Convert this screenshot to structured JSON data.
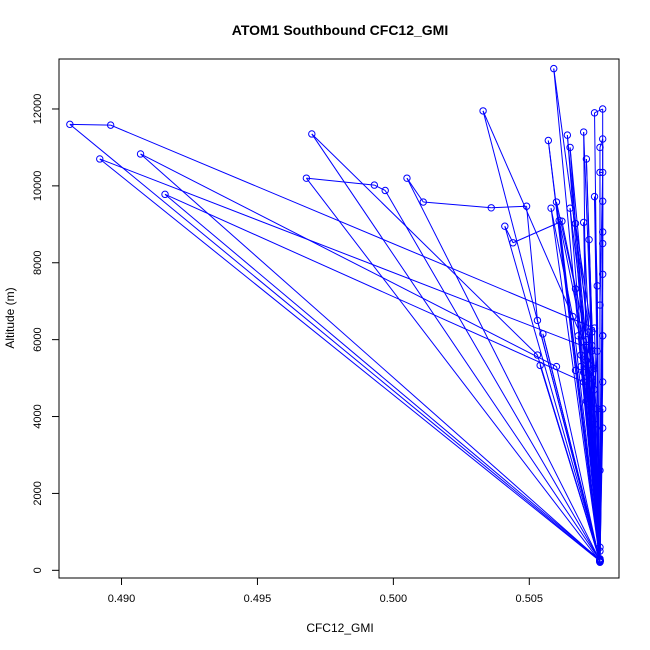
{
  "chart_data": {
    "type": "line",
    "title": "ATOM1 Southbound CFC12_GMI",
    "xlabel": "CFC12_GMI",
    "ylabel": "Altitude (m)",
    "xlim": [
      0.4877,
      0.5083
    ],
    "ylim": [
      -200,
      13300
    ],
    "x_ticks": [
      {
        "value": 0.49,
        "label": "0.490"
      },
      {
        "value": 0.495,
        "label": "0.495"
      },
      {
        "value": 0.5,
        "label": "0.500"
      },
      {
        "value": 0.505,
        "label": "0.505"
      }
    ],
    "y_ticks": [
      {
        "value": 0,
        "label": "0"
      },
      {
        "value": 2000,
        "label": "2000"
      },
      {
        "value": 4000,
        "label": "4000"
      },
      {
        "value": 6000,
        "label": "6000"
      },
      {
        "value": 8000,
        "label": "8000"
      },
      {
        "value": 10000,
        "label": "10000"
      },
      {
        "value": 12000,
        "label": "12000"
      }
    ],
    "grid": false,
    "legend": "none",
    "series_color": "#0000ff",
    "marker": "open-circle",
    "points": [
      [
        0.5076,
        250
      ],
      [
        0.4881,
        11600
      ],
      [
        0.4896,
        11580
      ],
      [
        0.5074,
        6300
      ],
      [
        0.5076,
        220
      ],
      [
        0.5076,
        240
      ],
      [
        0.4892,
        10700
      ],
      [
        0.5071,
        5800
      ],
      [
        0.5076,
        230
      ],
      [
        0.5076,
        260
      ],
      [
        0.4907,
        10830
      ],
      [
        0.506,
        5300
      ],
      [
        0.5076,
        210
      ],
      [
        0.5076,
        270
      ],
      [
        0.4916,
        9780
      ],
      [
        0.507,
        4900
      ],
      [
        0.5076,
        250
      ],
      [
        0.5076,
        260
      ],
      [
        0.497,
        11350
      ],
      [
        0.5053,
        5600
      ],
      [
        0.5076,
        240
      ],
      [
        0.5076,
        230
      ],
      [
        0.4968,
        10200
      ],
      [
        0.4993,
        10020
      ],
      [
        0.4997,
        9880
      ],
      [
        0.5076,
        260
      ],
      [
        0.5076,
        250
      ],
      [
        0.5005,
        10200
      ],
      [
        0.5011,
        9580
      ],
      [
        0.5036,
        9430
      ],
      [
        0.5049,
        9470
      ],
      [
        0.5053,
        6500
      ],
      [
        0.5076,
        240
      ],
      [
        0.5076,
        220
      ],
      [
        0.5033,
        11950
      ],
      [
        0.507,
        5950
      ],
      [
        0.5076,
        250
      ],
      [
        0.5076,
        260
      ],
      [
        0.5059,
        13050
      ],
      [
        0.5073,
        5700
      ],
      [
        0.5076,
        230
      ],
      [
        0.5076,
        240
      ],
      [
        0.5057,
        11180
      ],
      [
        0.5067,
        5200
      ],
      [
        0.5076,
        250
      ],
      [
        0.5076,
        230
      ],
      [
        0.5064,
        11320
      ],
      [
        0.5072,
        5100
      ],
      [
        0.5076,
        260
      ],
      [
        0.5076,
        250
      ],
      [
        0.507,
        11400
      ],
      [
        0.5071,
        4400
      ],
      [
        0.5076,
        220
      ],
      [
        0.5076,
        270
      ],
      [
        0.5041,
        8950
      ],
      [
        0.5044,
        8520
      ],
      [
        0.5062,
        9080
      ],
      [
        0.5071,
        6000
      ],
      [
        0.5076,
        240
      ],
      [
        0.5076,
        250
      ],
      [
        0.5055,
        6150
      ],
      [
        0.5076,
        260
      ],
      [
        0.5076,
        230
      ],
      [
        0.5054,
        5330
      ],
      [
        0.5076,
        250
      ],
      [
        0.5076,
        240
      ],
      [
        0.5058,
        9420
      ],
      [
        0.5066,
        6600
      ],
      [
        0.5076,
        230
      ],
      [
        0.5076,
        260
      ],
      [
        0.506,
        9580
      ],
      [
        0.5067,
        7320
      ],
      [
        0.5076,
        250
      ],
      [
        0.5076,
        240
      ],
      [
        0.5065,
        9420
      ],
      [
        0.5072,
        5350
      ],
      [
        0.5076,
        260
      ],
      [
        0.5076,
        250
      ],
      [
        0.5061,
        9100
      ],
      [
        0.5075,
        4200
      ],
      [
        0.5076,
        230
      ],
      [
        0.5076,
        240
      ],
      [
        0.5067,
        9020
      ],
      [
        0.5073,
        6200
      ],
      [
        0.5076,
        250
      ],
      [
        0.5076,
        230
      ],
      [
        0.5065,
        11000
      ],
      [
        0.5073,
        5000
      ],
      [
        0.5076,
        240
      ],
      [
        0.5076,
        260
      ],
      [
        0.5071,
        10700
      ],
      [
        0.5074,
        3800
      ],
      [
        0.5076,
        250
      ],
      [
        0.5076,
        250
      ],
      [
        0.5072,
        8600
      ],
      [
        0.5073,
        4100
      ],
      [
        0.5076,
        230
      ],
      [
        0.5076,
        240
      ],
      [
        0.507,
        9050
      ],
      [
        0.5071,
        5450
      ],
      [
        0.5076,
        260
      ],
      [
        0.5076,
        250
      ],
      [
        0.5074,
        9720
      ],
      [
        0.5075,
        7400
      ],
      [
        0.5076,
        240
      ],
      [
        0.5076,
        230
      ],
      [
        0.5074,
        11900
      ],
      [
        0.5077,
        12000
      ],
      [
        0.5077,
        8500
      ],
      [
        0.5076,
        250
      ],
      [
        0.5076,
        240
      ],
      [
        0.5076,
        11000
      ],
      [
        0.5077,
        11220
      ],
      [
        0.5077,
        6100
      ],
      [
        0.5076,
        260
      ],
      [
        0.5076,
        250
      ],
      [
        0.5076,
        10350
      ],
      [
        0.5077,
        10350
      ],
      [
        0.5076,
        6900
      ],
      [
        0.5076,
        230
      ],
      [
        0.5076,
        240
      ],
      [
        0.5077,
        9600
      ],
      [
        0.5077,
        8800
      ],
      [
        0.5077,
        7700
      ],
      [
        0.5076,
        250
      ],
      [
        0.5076,
        260
      ],
      [
        0.5077,
        6100
      ],
      [
        0.5077,
        4900
      ],
      [
        0.5076,
        240
      ],
      [
        0.5076,
        230
      ],
      [
        0.5077,
        4200
      ],
      [
        0.5077,
        3700
      ],
      [
        0.5076,
        250
      ],
      [
        0.5076,
        250
      ],
      [
        0.5075,
        5700
      ],
      [
        0.5074,
        4700
      ],
      [
        0.5076,
        260
      ],
      [
        0.5076,
        240
      ],
      [
        0.5072,
        6200
      ],
      [
        0.5071,
        4800
      ],
      [
        0.5076,
        230
      ],
      [
        0.5076,
        250
      ],
      [
        0.5068,
        6100
      ],
      [
        0.5069,
        5600
      ],
      [
        0.5076,
        240
      ],
      [
        0.5076,
        260
      ],
      [
        0.5069,
        5300
      ],
      [
        0.507,
        5150
      ],
      [
        0.5076,
        250
      ],
      [
        0.5076,
        500
      ],
      [
        0.5076,
        600
      ],
      [
        0.5076,
        280
      ],
      [
        0.5076,
        2600
      ],
      [
        0.5076,
        300
      ],
      [
        0.5073,
        5850
      ],
      [
        0.5074,
        5250
      ],
      [
        0.5072,
        4450
      ]
    ]
  }
}
